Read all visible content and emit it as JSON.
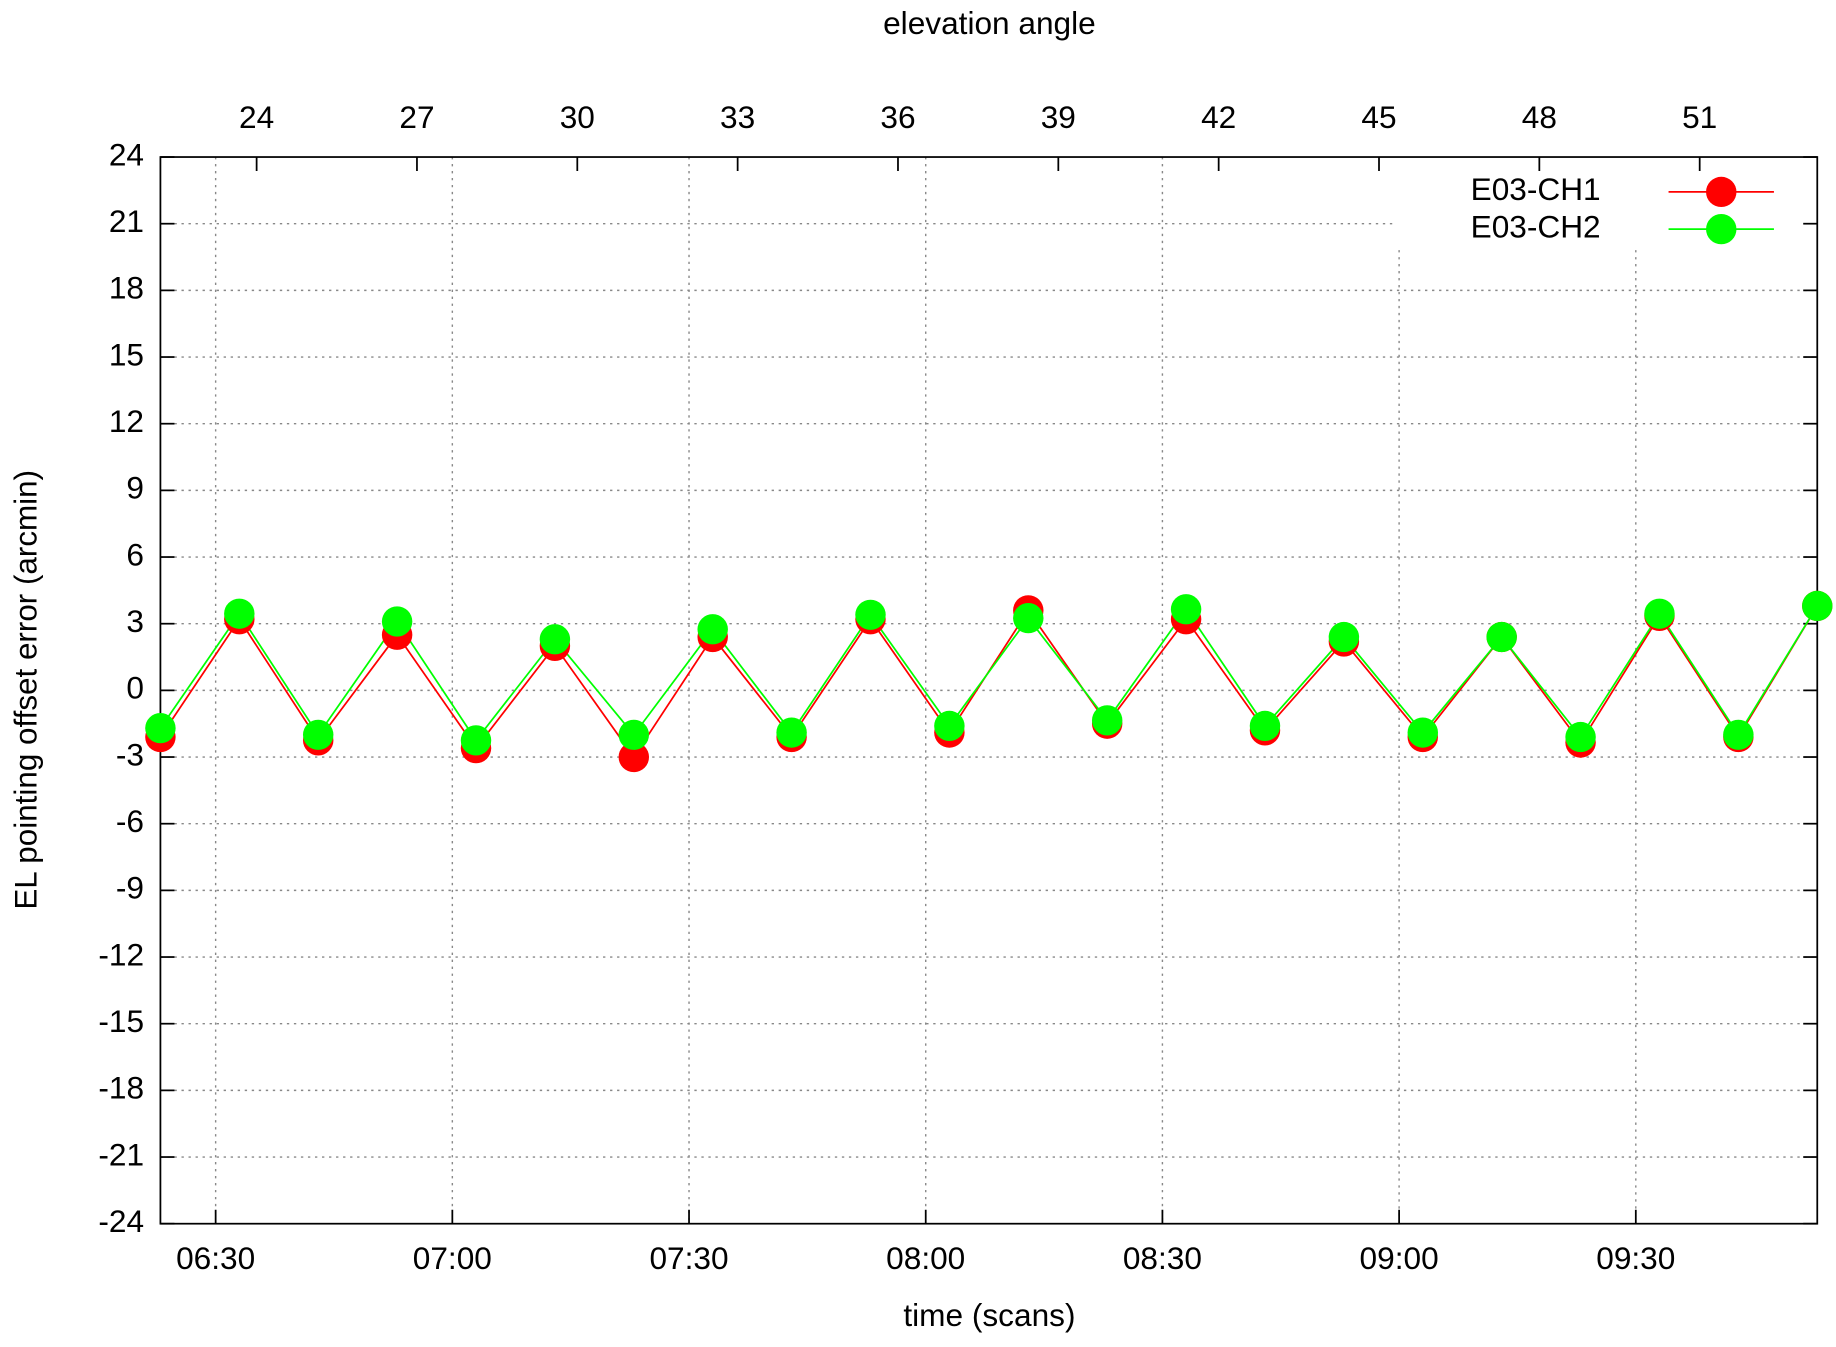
{
  "chart_data": {
    "type": "line",
    "x2label": "elevation angle",
    "xlabel": "time (scans)",
    "ylabel": "EL pointing offset error (arcmin)",
    "x": [
      "06:23",
      "06:33",
      "06:43",
      "06:53",
      "07:03",
      "07:13",
      "07:23",
      "07:33",
      "07:43",
      "07:53",
      "08:03",
      "08:13",
      "08:23",
      "08:33",
      "08:43",
      "08:53",
      "09:03",
      "09:13",
      "09:23",
      "09:33",
      "09:43",
      "09:53"
    ],
    "series": [
      {
        "name": "E03-CH1",
        "color": "#ff0000",
        "values": [
          -2.1,
          3.2,
          -2.25,
          2.5,
          -2.6,
          2.0,
          -3.0,
          2.4,
          -2.1,
          3.2,
          -1.9,
          3.6,
          -1.5,
          3.2,
          -1.8,
          2.2,
          -2.1,
          2.4,
          -2.35,
          3.35,
          -2.1,
          3.8
        ]
      },
      {
        "name": "E03-CH2",
        "color": "#00ff00",
        "values": [
          -1.7,
          3.45,
          -2.0,
          3.1,
          -2.25,
          2.3,
          -2.0,
          2.75,
          -1.9,
          3.4,
          -1.6,
          3.25,
          -1.35,
          3.65,
          -1.6,
          2.4,
          -1.9,
          2.4,
          -2.1,
          3.45,
          -2.0,
          3.8
        ]
      }
    ],
    "xlim": [
      "06:23",
      "09:53"
    ],
    "xticks": [
      "06:30",
      "07:00",
      "07:30",
      "08:00",
      "08:30",
      "09:00",
      "09:30"
    ],
    "x2lim": [
      22.2,
      53.2
    ],
    "x2ticks": [
      24,
      27,
      30,
      33,
      36,
      39,
      42,
      45,
      48,
      51
    ],
    "ylim": [
      -24,
      24
    ],
    "yticks": [
      -24,
      -21,
      -18,
      -15,
      -12,
      -9,
      -6,
      -3,
      0,
      3,
      6,
      9,
      12,
      15,
      18,
      21,
      24
    ],
    "grid": true,
    "legend": "top-right"
  }
}
